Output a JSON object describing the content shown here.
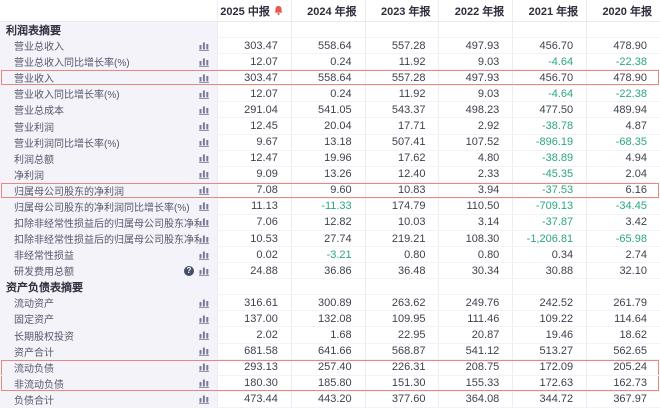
{
  "table": {
    "columns": [
      {
        "label": "2025 中报",
        "alert": true
      },
      {
        "label": "2024 年报"
      },
      {
        "label": "2023 年报"
      },
      {
        "label": "2022 年报"
      },
      {
        "label": "2021 年报"
      },
      {
        "label": "2020 年报"
      }
    ],
    "sections": [
      {
        "title": "利润表摘要",
        "rows": [
          {
            "label": "营业总收入",
            "values": [
              "303.47",
              "558.64",
              "557.28",
              "497.93",
              "456.70",
              "478.90"
            ]
          },
          {
            "label": "营业总收入同比增长率(%)",
            "values": [
              "12.07",
              "0.24",
              "11.92",
              "9.03",
              "-4.64",
              "-22.38"
            ]
          },
          {
            "label": "营业收入",
            "values": [
              "303.47",
              "558.64",
              "557.28",
              "497.93",
              "456.70",
              "478.90"
            ],
            "highlight": "single"
          },
          {
            "label": "营业收入同比增长率(%)",
            "values": [
              "12.07",
              "0.24",
              "11.92",
              "9.03",
              "-4.64",
              "-22.38"
            ]
          },
          {
            "label": "营业总成本",
            "values": [
              "291.04",
              "541.05",
              "543.37",
              "498.23",
              "477.50",
              "489.94"
            ]
          },
          {
            "label": "营业利润",
            "values": [
              "12.45",
              "20.04",
              "17.71",
              "2.92",
              "-38.78",
              "4.87"
            ]
          },
          {
            "label": "营业利润同比增长率(%)",
            "values": [
              "9.67",
              "13.18",
              "507.41",
              "107.52",
              "-896.19",
              "-68.35"
            ]
          },
          {
            "label": "利润总额",
            "values": [
              "12.47",
              "19.96",
              "17.62",
              "4.80",
              "-38.89",
              "4.94"
            ]
          },
          {
            "label": "净利润",
            "values": [
              "9.09",
              "13.26",
              "12.40",
              "2.33",
              "-45.35",
              "2.04"
            ]
          },
          {
            "label": "归属母公司股东的净利润",
            "values": [
              "7.08",
              "9.60",
              "10.83",
              "3.94",
              "-37.53",
              "6.16"
            ],
            "highlight": "single"
          },
          {
            "label": "归属母公司股东的净利润同比增长率(%)",
            "values": [
              "11.13",
              "-11.33",
              "174.79",
              "110.50",
              "-709.13",
              "-34.45"
            ]
          },
          {
            "label": "扣除非经常性损益后的归属母公司股东净利润",
            "values": [
              "7.06",
              "12.82",
              "10.03",
              "3.14",
              "-37.87",
              "3.42"
            ]
          },
          {
            "label": "扣除非经常性损益后的归属母公司股东净利润同比增...",
            "values": [
              "10.53",
              "27.74",
              "219.21",
              "108.30",
              "-1,206.81",
              "-65.98"
            ]
          },
          {
            "label": "非经常性损益",
            "values": [
              "0.02",
              "-3.21",
              "0.80",
              "0.80",
              "0.34",
              "2.74"
            ]
          },
          {
            "label": "研发费用总额",
            "values": [
              "24.88",
              "36.86",
              "36.48",
              "30.34",
              "30.88",
              "32.10"
            ],
            "info": true
          }
        ]
      },
      {
        "title": "资产负债表摘要",
        "rows": [
          {
            "label": "流动资产",
            "values": [
              "316.61",
              "300.89",
              "263.62",
              "249.76",
              "242.52",
              "261.79"
            ]
          },
          {
            "label": "固定资产",
            "values": [
              "137.00",
              "132.08",
              "109.95",
              "111.46",
              "109.22",
              "114.64"
            ]
          },
          {
            "label": "长期股权投资",
            "values": [
              "2.02",
              "1.68",
              "22.95",
              "20.87",
              "19.46",
              "18.62"
            ]
          },
          {
            "label": "资产合计",
            "values": [
              "681.58",
              "641.66",
              "568.87",
              "541.12",
              "513.27",
              "562.65"
            ]
          },
          {
            "label": "流动负债",
            "values": [
              "293.13",
              "257.40",
              "226.31",
              "208.75",
              "172.09",
              "205.24"
            ],
            "highlight": "start"
          },
          {
            "label": "非流动负债",
            "values": [
              "180.30",
              "185.80",
              "151.30",
              "155.33",
              "172.63",
              "162.73"
            ],
            "highlight": "end"
          },
          {
            "label": "负债合计",
            "values": [
              "473.44",
              "443.20",
              "377.60",
              "364.08",
              "344.72",
              "367.97"
            ]
          }
        ]
      }
    ]
  },
  "icons": {
    "alert": "alert-bell-icon",
    "chart": "bar-chart-icon",
    "help": "help-icon"
  },
  "colors": {
    "negative": "#2aa77e",
    "highlight_border": "#e58a80",
    "alert_red": "#e15b52",
    "label_bg": "#f3f3f9",
    "icon_gray": "#7b7b97"
  }
}
